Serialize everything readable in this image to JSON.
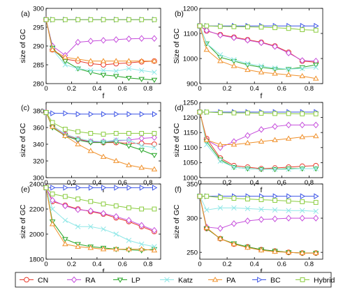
{
  "figure": {
    "colors": {
      "CN": "#e8392b",
      "RA": "#c64fdc",
      "LP": "#26a526",
      "Katz": "#8fe7e7",
      "PA": "#f0902a",
      "BC": "#3d55e6",
      "Hybrid": "#8acc3e"
    },
    "markers": {
      "CN": "circle",
      "RA": "diamond",
      "LP": "triangle-down",
      "Katz": "x-cross",
      "PA": "triangle-up",
      "BC": "triangle-right",
      "Hybrid": "square"
    },
    "legend": [
      "CN",
      "RA",
      "LP",
      "Katz",
      "PA",
      "BC",
      "Hybrid"
    ]
  },
  "chart_data": [
    {
      "type": "line",
      "panel_label": "(a)",
      "xlabel": "f",
      "ylabel": "size of GC",
      "xlim": [
        0,
        0.9
      ],
      "ylim": [
        280,
        300
      ],
      "xticks": [
        0,
        0.2,
        0.4,
        0.6,
        0.8
      ],
      "yticks": [
        280,
        285,
        290,
        295,
        300
      ],
      "x": [
        0,
        0.05,
        0.15,
        0.25,
        0.35,
        0.45,
        0.55,
        0.65,
        0.75,
        0.85
      ],
      "series": [
        {
          "name": "CN",
          "values": [
            297,
            289,
            286.5,
            286,
            285.3,
            285,
            285.3,
            285.5,
            285.8,
            286
          ]
        },
        {
          "name": "RA",
          "values": [
            297,
            290,
            287.5,
            291,
            291.3,
            291.5,
            291.7,
            291.9,
            292,
            292
          ]
        },
        {
          "name": "LP",
          "values": [
            297,
            289.5,
            286,
            284,
            283,
            282.3,
            282,
            281.5,
            281.2,
            281
          ]
        },
        {
          "name": "Katz",
          "values": [
            297,
            289,
            285,
            284,
            283.5,
            283.5,
            283.3,
            284,
            283.5,
            283
          ]
        },
        {
          "name": "PA",
          "values": [
            297,
            289,
            287,
            286.5,
            286,
            286,
            286,
            286,
            286,
            286
          ]
        },
        {
          "name": "BC",
          "values": [
            297,
            297,
            297,
            297,
            297,
            297,
            297,
            297,
            297,
            297
          ]
        },
        {
          "name": "Hybrid",
          "values": [
            297,
            297,
            297,
            297,
            297,
            297,
            297,
            297,
            297,
            297
          ]
        }
      ]
    },
    {
      "type": "line",
      "panel_label": "(b)",
      "xlabel": "f",
      "ylabel": "Size of GC",
      "xlim": [
        0,
        0.9
      ],
      "ylim": [
        900,
        1200
      ],
      "xticks": [
        0,
        0.2,
        0.4,
        0.6,
        0.8
      ],
      "yticks": [
        900,
        1000,
        1100,
        1200
      ],
      "x": [
        0,
        0.05,
        0.15,
        0.25,
        0.35,
        0.45,
        0.55,
        0.65,
        0.75,
        0.85
      ],
      "series": [
        {
          "name": "CN",
          "values": [
            1130,
            1110,
            1095,
            1085,
            1075,
            1065,
            1050,
            1025,
            990,
            985
          ]
        },
        {
          "name": "RA",
          "values": [
            1130,
            1112,
            1093,
            1083,
            1073,
            1063,
            1048,
            1022,
            992,
            990
          ]
        },
        {
          "name": "LP",
          "values": [
            1130,
            1060,
            1005,
            990,
            975,
            965,
            958,
            958,
            965,
            975
          ]
        },
        {
          "name": "Katz",
          "values": [
            1130,
            1060,
            1015,
            995,
            980,
            970,
            962,
            958,
            960,
            965
          ]
        },
        {
          "name": "PA",
          "values": [
            1130,
            1035,
            990,
            970,
            955,
            945,
            940,
            935,
            930,
            920
          ]
        },
        {
          "name": "BC",
          "values": [
            1130,
            1130,
            1130,
            1130,
            1130,
            1130,
            1130,
            1130,
            1130,
            1130
          ]
        },
        {
          "name": "Hybrid",
          "values": [
            1130,
            1130,
            1128,
            1127,
            1126,
            1125,
            1123,
            1120,
            1115,
            1113
          ]
        }
      ]
    },
    {
      "type": "line",
      "panel_label": "(c)",
      "xlabel": "f",
      "ylabel": "size of GC",
      "xlim": [
        0,
        0.9
      ],
      "ylim": [
        300,
        390
      ],
      "xticks": [
        0,
        0.2,
        0.4,
        0.6,
        0.8
      ],
      "yticks": [
        300,
        320,
        340,
        360,
        380
      ],
      "x": [
        0,
        0.05,
        0.15,
        0.25,
        0.35,
        0.45,
        0.55,
        0.65,
        0.75,
        0.85
      ],
      "series": [
        {
          "name": "CN",
          "values": [
            378,
            362,
            352,
            346,
            343,
            342,
            342,
            341,
            341,
            340
          ]
        },
        {
          "name": "RA",
          "values": [
            378,
            362,
            351,
            345,
            343,
            343,
            344,
            345,
            347,
            348
          ]
        },
        {
          "name": "LP",
          "values": [
            378,
            360,
            350,
            345,
            342,
            342,
            343,
            338,
            333,
            327
          ]
        },
        {
          "name": "Katz",
          "values": [
            378,
            362,
            352,
            347,
            344,
            343,
            345,
            345,
            338,
            336
          ]
        },
        {
          "name": "PA",
          "values": [
            378,
            361,
            350,
            340,
            332,
            325,
            320,
            315,
            312,
            310
          ]
        },
        {
          "name": "BC",
          "values": [
            378,
            377,
            377,
            376,
            376,
            376,
            376,
            376,
            376,
            376
          ]
        },
        {
          "name": "Hybrid",
          "values": [
            378,
            366,
            358,
            355,
            353,
            352,
            353,
            353,
            353,
            353
          ]
        }
      ]
    },
    {
      "type": "line",
      "panel_label": "(d)",
      "xlabel": "f",
      "ylabel": "size of GC",
      "xlim": [
        0,
        0.9
      ],
      "ylim": [
        1000,
        1250
      ],
      "xticks": [
        0,
        0.2,
        0.4,
        0.6,
        0.8
      ],
      "yticks": [
        1000,
        1050,
        1100,
        1150,
        1200,
        1250
      ],
      "x": [
        0,
        0.05,
        0.15,
        0.25,
        0.35,
        0.45,
        0.55,
        0.65,
        0.75,
        0.85
      ],
      "series": [
        {
          "name": "CN",
          "values": [
            1218,
            1130,
            1065,
            1040,
            1035,
            1030,
            1032,
            1035,
            1038,
            1040
          ]
        },
        {
          "name": "RA",
          "values": [
            1218,
            1125,
            1100,
            1120,
            1140,
            1160,
            1170,
            1175,
            1175,
            1175
          ]
        },
        {
          "name": "LP",
          "values": [
            1218,
            1120,
            1060,
            1035,
            1030,
            1028,
            1028,
            1030,
            1030,
            1030
          ]
        },
        {
          "name": "Katz",
          "values": [
            1218,
            1110,
            1055,
            1035,
            1030,
            1028,
            1028,
            1028,
            1030,
            1030
          ]
        },
        {
          "name": "PA",
          "values": [
            1218,
            1125,
            1110,
            1110,
            1115,
            1120,
            1125,
            1130,
            1135,
            1138
          ]
        },
        {
          "name": "BC",
          "values": [
            1218,
            1218,
            1218,
            1218,
            1218,
            1218,
            1218,
            1218,
            1218,
            1218
          ]
        },
        {
          "name": "Hybrid",
          "values": [
            1218,
            1218,
            1216,
            1215,
            1215,
            1214,
            1213,
            1213,
            1212,
            1212
          ]
        }
      ]
    },
    {
      "type": "line",
      "panel_label": "(e)",
      "xlabel": "f",
      "ylabel": "size of GC",
      "xlim": [
        0,
        0.9
      ],
      "ylim": [
        1800,
        2400
      ],
      "xticks": [
        0,
        0.2,
        0.4,
        0.6,
        0.8
      ],
      "yticks": [
        1800,
        2000,
        2200,
        2400
      ],
      "x": [
        0,
        0.05,
        0.15,
        0.25,
        0.35,
        0.45,
        0.55,
        0.65,
        0.75,
        0.85
      ],
      "series": [
        {
          "name": "CN",
          "values": [
            2370,
            2260,
            2230,
            2200,
            2180,
            2160,
            2130,
            2100,
            2060,
            2020
          ]
        },
        {
          "name": "RA",
          "values": [
            2370,
            2270,
            2225,
            2195,
            2185,
            2165,
            2140,
            2110,
            2070,
            2030
          ]
        },
        {
          "name": "LP",
          "values": [
            2370,
            2100,
            1960,
            1920,
            1900,
            1890,
            1880,
            1875,
            1870,
            1880
          ]
        },
        {
          "name": "Katz",
          "values": [
            2370,
            2200,
            2110,
            2060,
            2060,
            2040,
            2000,
            1950,
            1920,
            1900
          ]
        },
        {
          "name": "PA",
          "values": [
            2370,
            2080,
            1920,
            1900,
            1890,
            1880,
            1880,
            1880,
            1880,
            1870
          ]
        },
        {
          "name": "BC",
          "values": [
            2370,
            2370,
            2370,
            2370,
            2370,
            2370,
            2370,
            2370,
            2370,
            2370
          ]
        },
        {
          "name": "Hybrid",
          "values": [
            2370,
            2320,
            2300,
            2280,
            2260,
            2240,
            2225,
            2210,
            2200,
            2200
          ]
        }
      ]
    },
    {
      "type": "line",
      "panel_label": "(f)",
      "xlabel": "f",
      "ylabel": "size of GC",
      "xlim": [
        0,
        0.9
      ],
      "ylim": [
        240,
        350
      ],
      "xticks": [
        0,
        0.2,
        0.4,
        0.6,
        0.8
      ],
      "yticks": [
        250,
        300,
        350
      ],
      "x": [
        0,
        0.05,
        0.15,
        0.25,
        0.35,
        0.45,
        0.55,
        0.65,
        0.75,
        0.85
      ],
      "series": [
        {
          "name": "CN",
          "values": [
            332,
            285,
            270,
            262,
            258,
            254,
            252,
            250,
            249,
            249
          ]
        },
        {
          "name": "RA",
          "values": [
            332,
            287,
            285,
            292,
            296,
            298,
            299,
            300,
            300,
            300
          ]
        },
        {
          "name": "LP",
          "values": [
            332,
            285,
            270,
            263,
            258,
            254,
            252,
            250,
            249,
            249
          ]
        },
        {
          "name": "Katz",
          "values": [
            332,
            312,
            315,
            315,
            314,
            313,
            312,
            311,
            311,
            310
          ]
        },
        {
          "name": "PA",
          "values": [
            332,
            286,
            270,
            262,
            257,
            253,
            251,
            250,
            249,
            249
          ]
        },
        {
          "name": "BC",
          "values": [
            332,
            332,
            332,
            332,
            332,
            332,
            332,
            332,
            332,
            332
          ]
        },
        {
          "name": "Hybrid",
          "values": [
            332,
            332,
            330,
            329,
            328,
            327,
            326,
            325,
            324,
            323
          ]
        }
      ]
    }
  ]
}
